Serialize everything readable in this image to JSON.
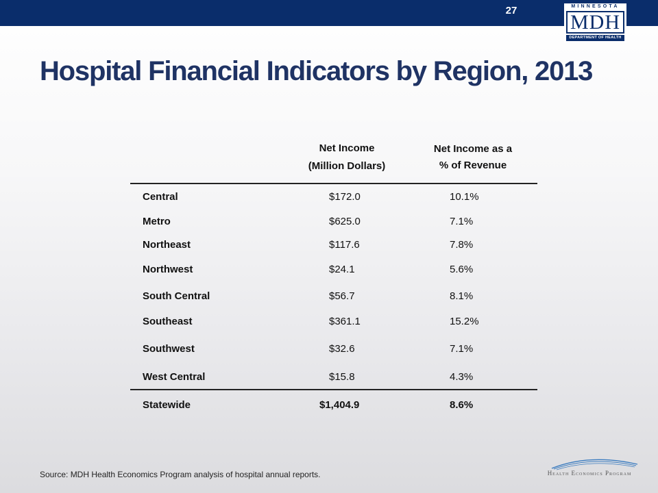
{
  "header": {
    "page_number": "27",
    "logo": {
      "top_text": "MINNESOTA",
      "main_text": "MDH",
      "bottom_text": "DEPARTMENT OF HEALTH"
    }
  },
  "title": "Hospital Financial Indicators by Region, 2013",
  "table": {
    "columns": [
      "Net Income (Million Dollars)",
      "Net Income as a % of Revenue"
    ],
    "column_lines": [
      [
        "Net Income",
        "(Million Dollars)"
      ],
      [
        "Net Income as a",
        "% of Revenue"
      ]
    ],
    "rows": [
      {
        "region": "Central",
        "net_income": "$172.0",
        "pct_revenue": "10.1%"
      },
      {
        "region": "Metro",
        "net_income": "$625.0",
        "pct_revenue": "7.1%"
      },
      {
        "region": "Northeast",
        "net_income": "$117.6",
        "pct_revenue": "7.8%"
      },
      {
        "region": "Northwest",
        "net_income": "$24.1",
        "pct_revenue": "5.6%"
      },
      {
        "region": "South Central",
        "net_income": "$56.7",
        "pct_revenue": "8.1%"
      },
      {
        "region": "Southeast",
        "net_income": "$361.1",
        "pct_revenue": "15.2%"
      },
      {
        "region": "Southwest",
        "net_income": "$32.6",
        "pct_revenue": "7.1%"
      },
      {
        "region": "West Central",
        "net_income": "$15.8",
        "pct_revenue": "4.3%"
      }
    ],
    "total": {
      "region": "Statewide",
      "net_income": "$1,404.9",
      "pct_revenue": "8.6%"
    }
  },
  "source": "Source: MDH Health Economics Program analysis of hospital annual reports.",
  "footer_logo_text": "Health Economics Program",
  "colors": {
    "top_bar": "#0a2d6b",
    "title": "#1f3364"
  }
}
